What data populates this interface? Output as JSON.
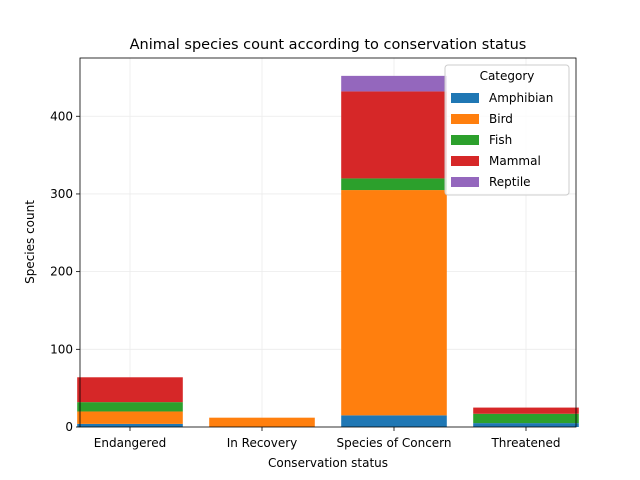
{
  "chart_data": {
    "type": "bar",
    "stacked": true,
    "title": "Animal species count according to conservation status",
    "xlabel": "Conservation status",
    "ylabel": "Species count",
    "categories": [
      "Endangered",
      "In Recovery",
      "Species of Concern",
      "Threatened"
    ],
    "ylim": [
      0,
      475
    ],
    "yticks": [
      0,
      100,
      200,
      300,
      400
    ],
    "grid": true,
    "legend": {
      "title": "Category",
      "placement": "top-right"
    },
    "series": [
      {
        "name": "Amphibian",
        "color": "#1f77b4",
        "values": [
          4,
          0,
          15,
          5
        ]
      },
      {
        "name": "Bird",
        "color": "#ff7f0e",
        "values": [
          16,
          12,
          290,
          0
        ]
      },
      {
        "name": "Fish",
        "color": "#2ca02c",
        "values": [
          12,
          0,
          15,
          12
        ]
      },
      {
        "name": "Mammal",
        "color": "#d62728",
        "values": [
          32,
          0,
          112,
          8
        ]
      },
      {
        "name": "Reptile",
        "color": "#9467bd",
        "values": [
          0,
          0,
          20,
          0
        ]
      }
    ]
  }
}
